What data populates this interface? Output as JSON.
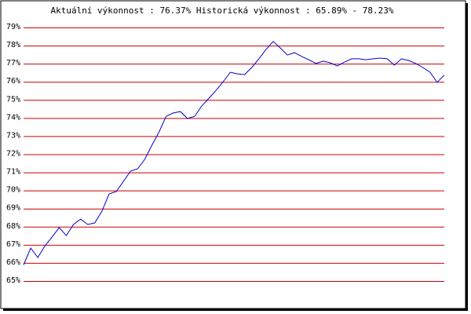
{
  "chart_data": {
    "type": "line",
    "title": "Aktuální výkonnost : 76.37%  Historická výkonnost : 65.89% - 78.23%",
    "categories": [
      null,
      null,
      null,
      null,
      null,
      null,
      null,
      null,
      null,
      null,
      null,
      null,
      null,
      null,
      null,
      null,
      null,
      null,
      null,
      null,
      null,
      null,
      null,
      null,
      null,
      null,
      null,
      null,
      null,
      null,
      null,
      null,
      null,
      null,
      null,
      null,
      null,
      null,
      null,
      null,
      null,
      null,
      null,
      null,
      null,
      null,
      null,
      null,
      null,
      null,
      null,
      null,
      null,
      null,
      null,
      null,
      null,
      null,
      null,
      null
    ],
    "series": [
      {
        "color": "#0000cc",
        "values": [
          65.89,
          66.82,
          66.3,
          66.95,
          67.43,
          67.95,
          67.51,
          68.12,
          68.42,
          68.12,
          68.21,
          68.86,
          69.81,
          69.94,
          70.5,
          71.07,
          71.2,
          71.72,
          72.5,
          73.23,
          74.1,
          74.28,
          74.36,
          73.97,
          74.1,
          74.67,
          75.1,
          75.53,
          76.01,
          76.53,
          76.44,
          76.4,
          76.79,
          77.27,
          77.79,
          78.23,
          77.87,
          77.48,
          77.61,
          77.4,
          77.22,
          77.01,
          77.14,
          77.05,
          76.88,
          77.09,
          77.27,
          77.27,
          77.22,
          77.27,
          77.31,
          77.27,
          76.92,
          77.27,
          77.18,
          77.01,
          76.79,
          76.53,
          75.97,
          76.37
        ]
      }
    ],
    "ylim": [
      65,
      79
    ],
    "yticks": [
      {
        "value": 65,
        "label": "65%"
      },
      {
        "value": 66,
        "label": "66%"
      },
      {
        "value": 67,
        "label": "67%"
      },
      {
        "value": 68,
        "label": "68%"
      },
      {
        "value": 69,
        "label": "69%"
      },
      {
        "value": 70,
        "label": "70%"
      },
      {
        "value": 71,
        "label": "71%"
      },
      {
        "value": 72,
        "label": "72%"
      },
      {
        "value": 73,
        "label": "73%"
      },
      {
        "value": 74,
        "label": "74%"
      },
      {
        "value": 75,
        "label": "75%"
      },
      {
        "value": 76,
        "label": "76%"
      },
      {
        "value": 77,
        "label": "77%"
      },
      {
        "value": 78,
        "label": "78%"
      },
      {
        "value": 79,
        "label": "79%"
      }
    ],
    "grid": true,
    "grid_color": "#cc0000"
  }
}
